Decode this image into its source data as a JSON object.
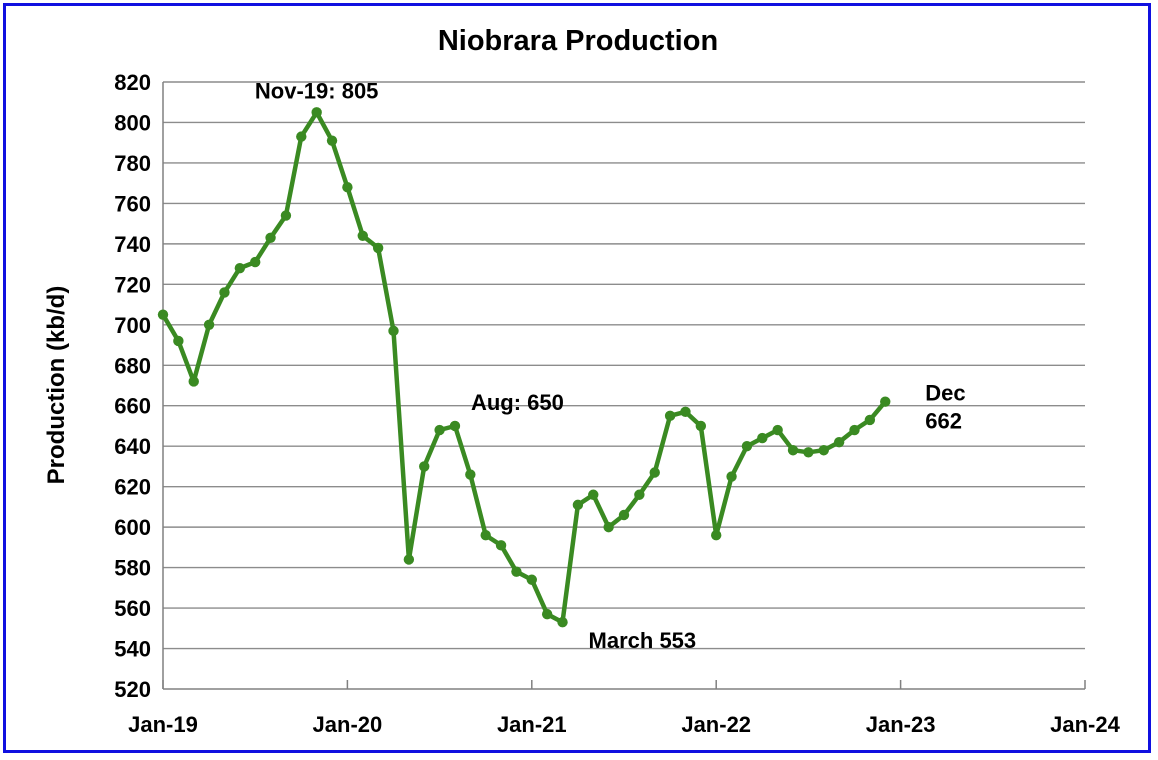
{
  "colors": {
    "border": "#1010e0",
    "line": "#3a8a22",
    "grid": "#8c8c8c",
    "axis": "#808080"
  },
  "chart_data": {
    "type": "line",
    "title": "Niobrara Production",
    "xlabel": "",
    "ylabel": "Production (kb/d)",
    "ylim": [
      520,
      820
    ],
    "y_ticks": [
      520,
      540,
      560,
      580,
      600,
      620,
      640,
      660,
      680,
      700,
      720,
      740,
      760,
      780,
      800,
      820
    ],
    "x_range": [
      "2019-01",
      "2024-01"
    ],
    "x_tick_labels": [
      "Jan-19",
      "Jan-20",
      "Jan-21",
      "Jan-22",
      "Jan-23",
      "Jan-24"
    ],
    "grid": true,
    "legend": "none",
    "series": [
      {
        "x": [
          "2019-01",
          "2019-02",
          "2019-03",
          "2019-04",
          "2019-05",
          "2019-06",
          "2019-07",
          "2019-08",
          "2019-09",
          "2019-10",
          "2019-11",
          "2019-12",
          "2020-01",
          "2020-02",
          "2020-03",
          "2020-04",
          "2020-05",
          "2020-06",
          "2020-07",
          "2020-08",
          "2020-09",
          "2020-10",
          "2020-11",
          "2020-12",
          "2021-01",
          "2021-02",
          "2021-03",
          "2021-04",
          "2021-05",
          "2021-06",
          "2021-07",
          "2021-08",
          "2021-09",
          "2021-10",
          "2021-11",
          "2021-12",
          "2022-01",
          "2022-02",
          "2022-03",
          "2022-04",
          "2022-05",
          "2022-06",
          "2022-07",
          "2022-08",
          "2022-09",
          "2022-10",
          "2022-11",
          "2022-12"
        ],
        "y": [
          705,
          692,
          672,
          700,
          716,
          728,
          731,
          743,
          754,
          793,
          805,
          791,
          768,
          744,
          738,
          697,
          584,
          630,
          648,
          650,
          626,
          596,
          591,
          578,
          574,
          557,
          553,
          611,
          616,
          600,
          606,
          616,
          627,
          655,
          657,
          650,
          596,
          625,
          640,
          644,
          648,
          638,
          637,
          638,
          642,
          648,
          653,
          662
        ]
      }
    ],
    "annotations": [
      {
        "text": "Nov-19: 805",
        "x": "2019-11",
        "y": 805
      },
      {
        "text": "Aug: 650",
        "x": "2020-08",
        "y": 650
      },
      {
        "text": "March  553",
        "x": "2021-03",
        "y": 553
      },
      {
        "text": "Dec",
        "x": "2022-12",
        "y": 662
      },
      {
        "text": "662",
        "x": "2022-12",
        "y": 662
      }
    ]
  }
}
